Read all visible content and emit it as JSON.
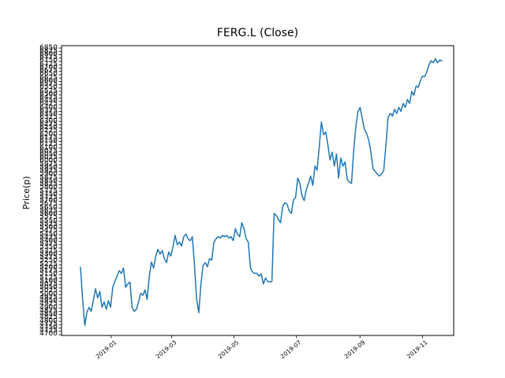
{
  "figure": {
    "title": "FERG.L (Close)",
    "ylabel": "Price(p)"
  },
  "chart_data": {
    "type": "line",
    "title": "FERG.L (Close)",
    "xlabel": "",
    "ylabel": "Price(p)",
    "series_name": "Close",
    "line_color": "#1f77b4",
    "background_color": "#ffffff",
    "grid": false,
    "legend": "none",
    "x_start_date": "2018-12-02",
    "x_end_date": "2019-11-20",
    "x_tick_labels": [
      "2019-01",
      "2019-03",
      "2019-05",
      "2019-07",
      "2019-09",
      "2019-11"
    ],
    "y_ticks": {
      "min": 4700,
      "max": 6850,
      "step": 25
    },
    "y_axis_range": [
      4694,
      6868
    ],
    "closes": [
      5205,
      4965,
      4770,
      4870,
      4905,
      4875,
      4960,
      5045,
      4975,
      5025,
      4905,
      4945,
      4890,
      4955,
      4905,
      5055,
      5100,
      5140,
      5180,
      5160,
      5200,
      5055,
      5080,
      5095,
      4905,
      4875,
      4890,
      4945,
      5010,
      4995,
      5035,
      4965,
      5140,
      5245,
      5200,
      5290,
      5340,
      5305,
      5330,
      5270,
      5240,
      5320,
      5290,
      5360,
      5445,
      5375,
      5395,
      5365,
      5435,
      5455,
      5420,
      5405,
      5435,
      5220,
      4965,
      4865,
      5080,
      5220,
      5240,
      5210,
      5270,
      5260,
      5390,
      5420,
      5435,
      5425,
      5445,
      5435,
      5445,
      5425,
      5435,
      5405,
      5495,
      5455,
      5435,
      5540,
      5495,
      5420,
      5395,
      5200,
      5170,
      5160,
      5160,
      5140,
      5155,
      5080,
      5125,
      5100,
      5095,
      5100,
      5610,
      5595,
      5565,
      5540,
      5660,
      5690,
      5680,
      5630,
      5610,
      5710,
      5730,
      5875,
      5835,
      5740,
      5705,
      5790,
      5835,
      5890,
      5820,
      5965,
      5935,
      6110,
      6295,
      6200,
      6220,
      6125,
      6010,
      6070,
      5965,
      6055,
      5875,
      6025,
      5965,
      5995,
      5865,
      5845,
      5835,
      6080,
      6260,
      6375,
      6405,
      6320,
      6240,
      6210,
      6160,
      6070,
      5945,
      5925,
      5905,
      5890,
      5905,
      5935,
      6125,
      6330,
      6360,
      6340,
      6390,
      6360,
      6405,
      6375,
      6435,
      6405,
      6465,
      6435,
      6525,
      6495,
      6565,
      6555,
      6605,
      6640,
      6635,
      6670,
      6725,
      6755,
      6740,
      6770,
      6740,
      6760,
      6755
    ]
  }
}
